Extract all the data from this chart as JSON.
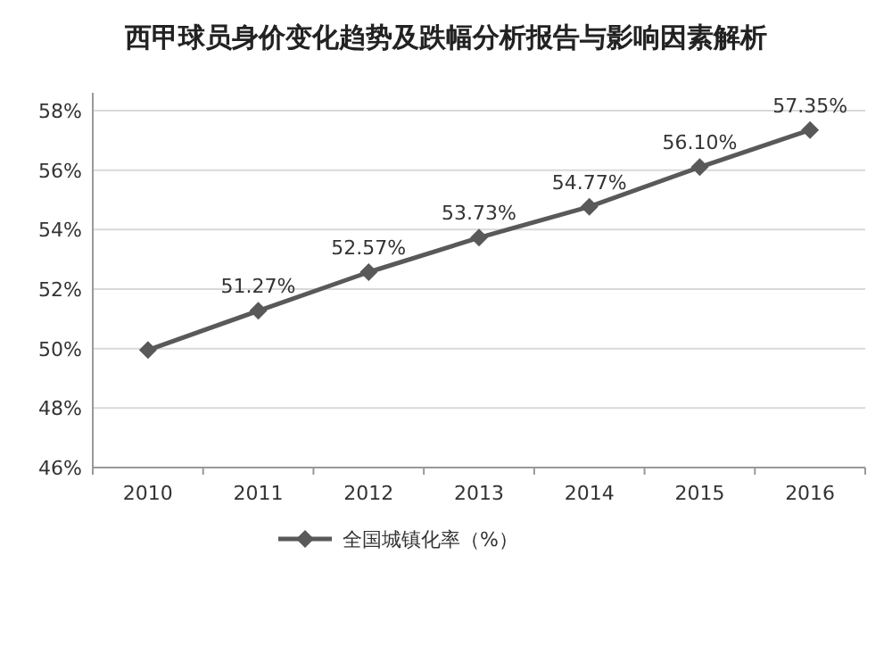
{
  "chart_data": {
    "type": "line",
    "title": "西甲球员身价变化趋势及跌幅分析报告与影响因素解析",
    "categories": [
      "2010",
      "2011",
      "2012",
      "2013",
      "2014",
      "2015",
      "2016"
    ],
    "series": [
      {
        "name": "全国城镇化率（%）",
        "color": "#595959",
        "values": [
          49.95,
          51.27,
          52.57,
          53.73,
          54.77,
          56.1,
          57.35
        ],
        "value_labels": [
          null,
          "51.27%",
          "52.57%",
          "53.73%",
          "54.77%",
          "56.10%",
          "57.35%"
        ]
      }
    ],
    "ylim": [
      46,
      58.6
    ],
    "yticks": [
      {
        "value": 46,
        "label": "46%"
      },
      {
        "value": 48,
        "label": "48%"
      },
      {
        "value": 50,
        "label": "50%"
      },
      {
        "value": 52,
        "label": "52%"
      },
      {
        "value": 54,
        "label": "54%"
      },
      {
        "value": 56,
        "label": "56%"
      },
      {
        "value": 58,
        "label": "58%"
      }
    ],
    "grid": "y",
    "legend": "bottom",
    "marker": "diamond",
    "line_style": "solid"
  }
}
